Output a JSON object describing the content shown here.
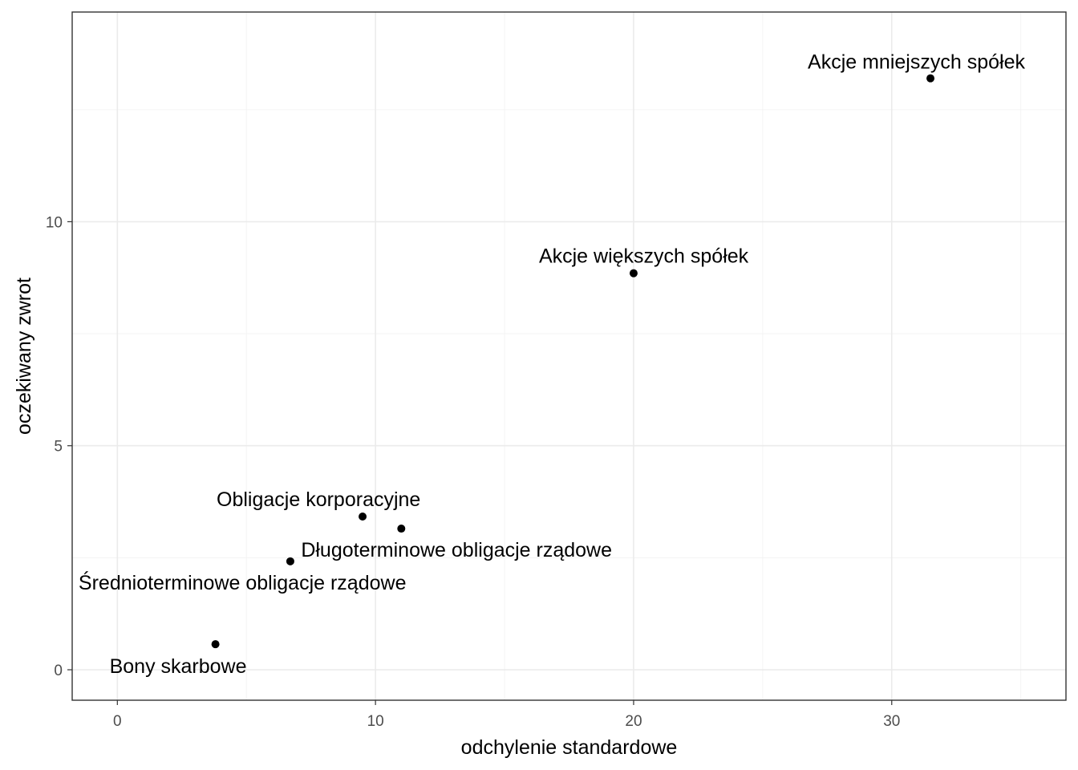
{
  "chart_data": {
    "type": "scatter",
    "xlabel": "odchylenie standardowe",
    "ylabel": "oczekiwany zwrot",
    "xlim": [
      -1.75,
      36.75
    ],
    "ylim": [
      -0.68,
      14.68
    ],
    "x_ticks": [
      0,
      10,
      20,
      30
    ],
    "y_ticks": [
      0,
      5,
      10
    ],
    "grid": true,
    "points": [
      {
        "label": "Bony skarbowe",
        "x": 3.8,
        "y": 0.57
      },
      {
        "label": "Średnioterminowe obligacje rządowe",
        "x": 6.7,
        "y": 2.42
      },
      {
        "label": "Długoterminowe obligacje rządowe",
        "x": 11.0,
        "y": 3.15
      },
      {
        "label": "Obligacje korporacyjne",
        "x": 9.5,
        "y": 3.42
      },
      {
        "label": "Akcje większych spółek",
        "x": 20.0,
        "y": 8.85
      },
      {
        "label": "Akcje mniejszych spółek",
        "x": 31.5,
        "y": 13.2
      }
    ]
  }
}
